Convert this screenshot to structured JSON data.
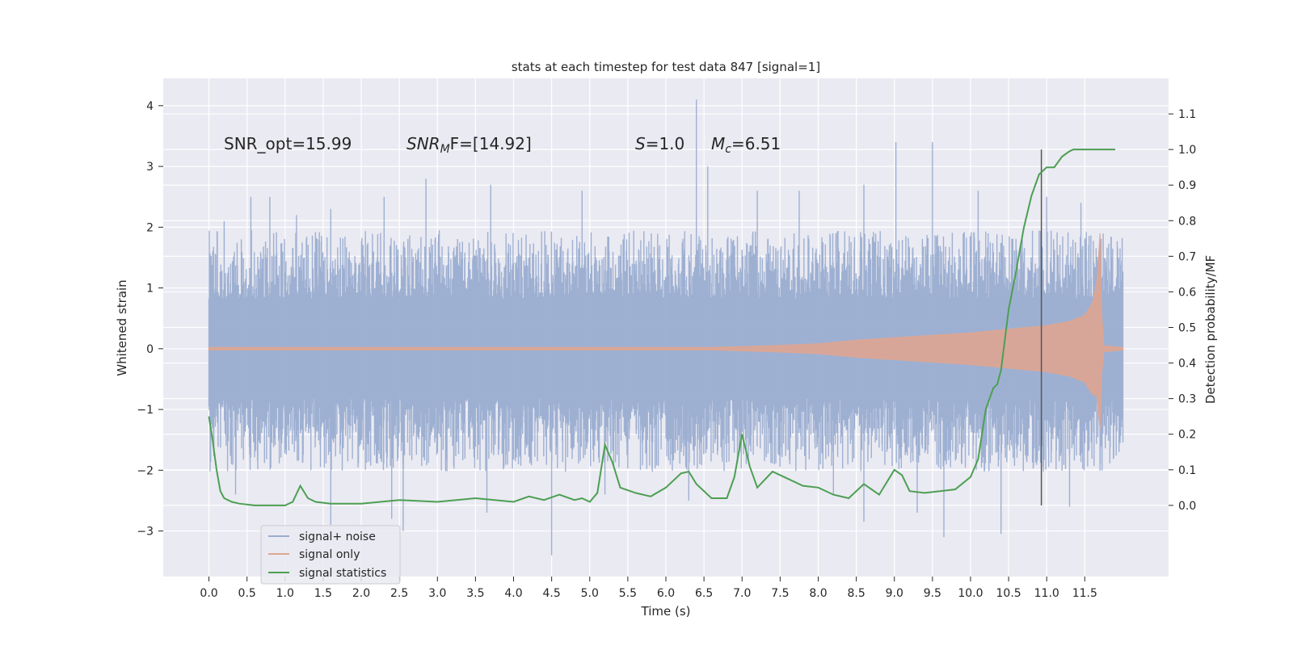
{
  "chart_data": {
    "type": "line",
    "title": "stats at each timestep for test data 847 [signal=1]",
    "xlabel": "Time (s)",
    "ylabel": "Whitened strain",
    "ylabel_right": "Detection probability/MF",
    "xlim": [
      -0.6,
      12.6
    ],
    "ylim": [
      -3.75,
      4.45
    ],
    "ylim_right": [
      -0.2,
      1.2
    ],
    "x_ticks": [
      "0.0",
      "0.5",
      "1.0",
      "1.5",
      "2.0",
      "2.5",
      "3.0",
      "3.5",
      "4.0",
      "4.5",
      "5.0",
      "5.5",
      "6.0",
      "6.5",
      "7.0",
      "7.5",
      "8.0",
      "8.5",
      "9.0",
      "9.5",
      "10.0",
      "10.5",
      "11.0",
      "11.5"
    ],
    "y_ticks": [
      -3,
      -2,
      -1,
      0,
      1,
      2,
      3,
      4
    ],
    "y_tick_labels": [
      "−3",
      "−2",
      "−1",
      "0",
      "1",
      "2",
      "3",
      "4"
    ],
    "y_right_ticks": [
      "0.0",
      "0.1",
      "0.2",
      "0.3",
      "0.4",
      "0.5",
      "0.6",
      "0.7",
      "0.8",
      "0.9",
      "1.0",
      "1.1"
    ],
    "grid": true,
    "legend_position": "lower-left",
    "annotations": {
      "snr_opt": "SNR_opt=15.99",
      "snr_mf_base": "SNR",
      "snr_mf_sub": "M",
      "snr_mf_rest": "F=[14.92]",
      "s_var": "S",
      "s_val": "=1.0",
      "mc_var": "M",
      "mc_sub": "c",
      "mc_val": "=6.51"
    },
    "vline_x": 10.93,
    "noise_envelope": {
      "t_start": 0.0,
      "t_end": 12.0,
      "typical_abs": 1.5,
      "max": 4.1,
      "min": -3.4
    },
    "series": [
      {
        "name": "signal+ noise",
        "color": "#9aadd0",
        "axis": "left",
        "spikes": [
          [
            0.2,
            2.1
          ],
          [
            0.55,
            2.5
          ],
          [
            0.8,
            2.5
          ],
          [
            1.15,
            2.2
          ],
          [
            1.6,
            2.3
          ],
          [
            2.3,
            2.5
          ],
          [
            2.85,
            2.8
          ],
          [
            3.7,
            2.7
          ],
          [
            4.9,
            2.6
          ],
          [
            6.4,
            4.1
          ],
          [
            6.55,
            3.0
          ],
          [
            7.2,
            2.6
          ],
          [
            7.75,
            2.6
          ],
          [
            8.6,
            2.7
          ],
          [
            9.02,
            3.4
          ],
          [
            9.5,
            3.4
          ],
          [
            10.1,
            2.6
          ],
          [
            11.0,
            2.5
          ],
          [
            11.45,
            2.4
          ],
          [
            0.35,
            -2.4
          ],
          [
            1.6,
            -2.9
          ],
          [
            2.4,
            -2.8
          ],
          [
            2.55,
            -3.0
          ],
          [
            3.65,
            -2.7
          ],
          [
            4.5,
            -3.4
          ],
          [
            5.2,
            -2.4
          ],
          [
            6.3,
            -2.5
          ],
          [
            8.2,
            -2.4
          ],
          [
            8.6,
            -2.85
          ],
          [
            9.3,
            -2.7
          ],
          [
            9.65,
            -3.1
          ],
          [
            10.4,
            -3.05
          ],
          [
            11.3,
            -2.6
          ]
        ]
      },
      {
        "name": "signal only",
        "color": "#e0a58f",
        "axis": "left",
        "envelope": [
          [
            0.0,
            0.02
          ],
          [
            6.6,
            0.02
          ],
          [
            7.4,
            0.05
          ],
          [
            8.0,
            0.08
          ],
          [
            8.5,
            0.14
          ],
          [
            9.0,
            0.18
          ],
          [
            9.5,
            0.22
          ],
          [
            10.0,
            0.26
          ],
          [
            10.5,
            0.32
          ],
          [
            11.0,
            0.38
          ],
          [
            11.3,
            0.45
          ],
          [
            11.5,
            0.55
          ],
          [
            11.6,
            0.75
          ],
          [
            11.66,
            1.1
          ],
          [
            11.7,
            1.9
          ],
          [
            11.72,
            0.6
          ],
          [
            11.75,
            0.05
          ],
          [
            12.0,
            0.02
          ]
        ]
      },
      {
        "name": "signal statistics",
        "color": "#4c9f52",
        "axis": "right",
        "x": [
          0.0,
          0.05,
          0.1,
          0.15,
          0.2,
          0.3,
          0.4,
          0.6,
          0.8,
          1.0,
          1.1,
          1.2,
          1.3,
          1.4,
          1.6,
          2.0,
          2.5,
          3.0,
          3.5,
          4.0,
          4.2,
          4.4,
          4.6,
          4.8,
          4.9,
          5.0,
          5.1,
          5.2,
          5.3,
          5.4,
          5.6,
          5.8,
          6.0,
          6.2,
          6.3,
          6.4,
          6.6,
          6.8,
          6.9,
          7.0,
          7.1,
          7.2,
          7.4,
          7.6,
          7.8,
          8.0,
          8.2,
          8.4,
          8.6,
          8.8,
          9.0,
          9.1,
          9.2,
          9.4,
          9.6,
          9.8,
          10.0,
          10.1,
          10.2,
          10.3,
          10.35,
          10.4,
          10.5,
          10.6,
          10.7,
          10.8,
          10.9,
          11.0,
          11.1,
          11.2,
          11.3,
          11.35,
          11.5,
          11.7,
          11.9
        ],
        "y": [
          0.25,
          0.18,
          0.1,
          0.04,
          0.02,
          0.01,
          0.005,
          0.0,
          0.0,
          0.0,
          0.01,
          0.055,
          0.02,
          0.01,
          0.005,
          0.005,
          0.015,
          0.01,
          0.02,
          0.01,
          0.025,
          0.015,
          0.03,
          0.015,
          0.02,
          0.01,
          0.035,
          0.17,
          0.12,
          0.05,
          0.035,
          0.025,
          0.05,
          0.09,
          0.095,
          0.06,
          0.02,
          0.02,
          0.08,
          0.2,
          0.11,
          0.05,
          0.095,
          0.075,
          0.055,
          0.05,
          0.03,
          0.02,
          0.06,
          0.03,
          0.1,
          0.085,
          0.04,
          0.035,
          0.04,
          0.045,
          0.08,
          0.13,
          0.27,
          0.33,
          0.34,
          0.38,
          0.55,
          0.66,
          0.78,
          0.87,
          0.93,
          0.95,
          0.95,
          0.98,
          0.995,
          1.0,
          1.0,
          1.0,
          1.0
        ]
      }
    ]
  }
}
